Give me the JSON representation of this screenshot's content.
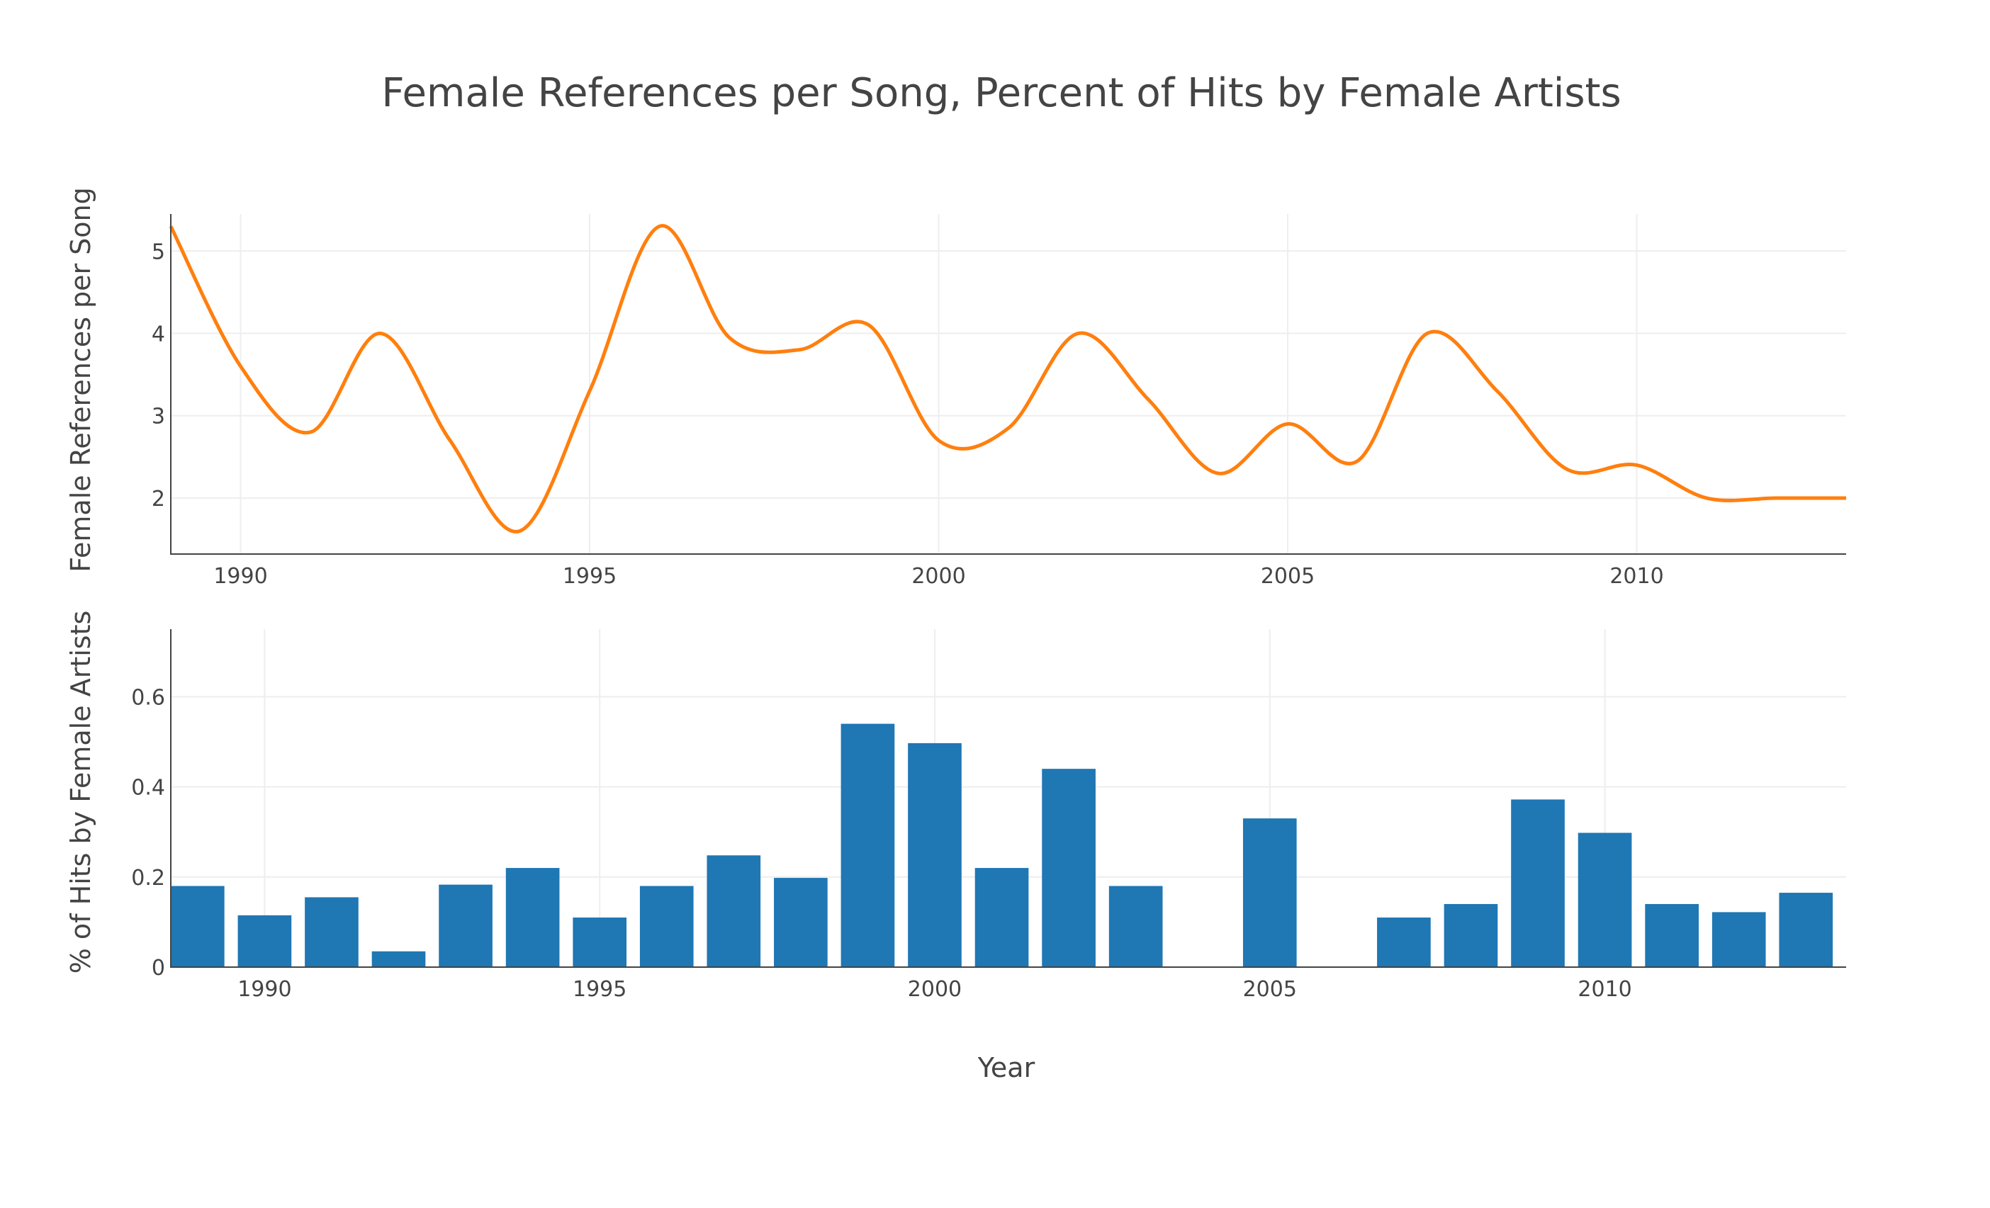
{
  "title": "Female References per Song, Percent of Hits by Female Artists",
  "colors": {
    "line": "#ff7f0e",
    "bar": "#1f77b4",
    "grid": "#eeeeee",
    "axis": "#444444",
    "text": "#444444"
  },
  "chart_data": [
    {
      "type": "line",
      "smoothing": "spline",
      "ylabel": "Female References per Song",
      "xlim": [
        1989,
        2013
      ],
      "ylim": [
        1.32,
        5.45
      ],
      "x_ticks": [
        1990,
        1995,
        2000,
        2005,
        2010
      ],
      "y_ticks": [
        2,
        3,
        4,
        5
      ],
      "grid": true,
      "series": [
        {
          "x": [
            1989,
            1990,
            1991,
            1992,
            1993,
            1994,
            1995,
            1996,
            1997,
            1998,
            1999,
            2000,
            2001,
            2002,
            2003,
            2004,
            2005,
            2006,
            2007,
            2008,
            2009,
            2010,
            2011,
            2012,
            2013
          ],
          "values": [
            5.3,
            3.6,
            2.8,
            4.0,
            2.7,
            1.6,
            3.3,
            5.3,
            3.95,
            3.8,
            4.1,
            2.7,
            2.85,
            4.0,
            3.2,
            2.3,
            2.9,
            2.45,
            4.0,
            3.3,
            2.35,
            2.4,
            2.0,
            2.0,
            2.0
          ]
        }
      ]
    },
    {
      "type": "bar",
      "xlabel": "Year",
      "ylabel": "% of Hits by Female Artists",
      "xlim": [
        1988.6,
        2013.6
      ],
      "ylim": [
        0,
        0.75
      ],
      "x_ticks": [
        1990,
        1995,
        2000,
        2005,
        2010
      ],
      "y_ticks": [
        0,
        0.2,
        0.4,
        0.6
      ],
      "y_tick_labels": [
        "0",
        "0.2",
        "0.4",
        "0.6"
      ],
      "grid": true,
      "categories": [
        1989,
        1990,
        1991,
        1992,
        1993,
        1994,
        1995,
        1996,
        1997,
        1998,
        1999,
        2000,
        2001,
        2002,
        2003,
        2004,
        2005,
        2006,
        2007,
        2008,
        2009,
        2010,
        2011,
        2012,
        2013
      ],
      "values": [
        0.18,
        0.115,
        0.155,
        0.035,
        0.183,
        0.22,
        0.11,
        0.18,
        0.248,
        0.198,
        0.54,
        0.497,
        0.22,
        0.44,
        0.18,
        0,
        0.33,
        0,
        0.11,
        0.14,
        0.372,
        0.298,
        0.14,
        0.122,
        0.165
      ]
    }
  ]
}
